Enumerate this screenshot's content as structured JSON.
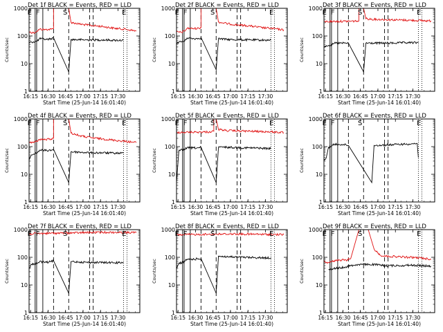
{
  "figure": {
    "ylabel": "Counts/sec",
    "xlabel": "Start Time (25-Jun-14 16:01:40)",
    "x_tick_labels": [
      "16:15",
      "16:30",
      "16:45",
      "17:00",
      "17:15",
      "17:30"
    ],
    "y_tick_labels": [
      "1",
      "10",
      "100",
      "1000"
    ],
    "marker_labels": [
      "E",
      "F",
      "S",
      "E"
    ]
  },
  "chart_data": [
    {
      "type": "line",
      "title": "Det 1f BLACK = Events, RED = LLD",
      "xlim_min": [
        12,
        107
      ],
      "ylim": [
        1,
        1000
      ],
      "y_scale": "log",
      "gaps_min": [
        [
          33,
          46
        ],
        [
          64,
          67
        ]
      ],
      "red_mode": "normal",
      "red": [
        [
          12,
          140
        ],
        [
          16,
          130
        ],
        [
          19,
          150
        ],
        [
          21,
          175
        ],
        [
          26,
          170
        ],
        [
          31,
          175
        ],
        [
          33,
          185
        ],
        [
          33,
          1000
        ],
        [
          46,
          1000
        ],
        [
          48,
          310
        ],
        [
          55,
          270
        ],
        [
          65,
          240
        ],
        [
          75,
          220
        ],
        [
          85,
          190
        ],
        [
          95,
          175
        ],
        [
          104,
          150
        ]
      ],
      "black": [
        [
          12,
          55
        ],
        [
          14,
          60
        ],
        [
          19,
          65
        ],
        [
          21,
          80
        ],
        [
          27,
          75
        ],
        [
          31,
          80
        ],
        [
          33,
          85
        ],
        [
          46,
          5
        ],
        [
          48,
          75
        ],
        [
          55,
          73
        ],
        [
          65,
          72
        ],
        [
          75,
          72
        ],
        [
          85,
          70
        ],
        [
          93,
          70
        ]
      ]
    },
    {
      "type": "line",
      "title": "Det 2f BLACK = Events, RED = LLD",
      "xlim_min": [
        12,
        107
      ],
      "ylim": [
        1,
        1000
      ],
      "y_scale": "log",
      "gaps_min": [
        [
          33,
          46
        ],
        [
          64,
          67
        ]
      ],
      "red_mode": "normal",
      "red": [
        [
          12,
          140
        ],
        [
          16,
          135
        ],
        [
          19,
          150
        ],
        [
          21,
          190
        ],
        [
          26,
          185
        ],
        [
          31,
          190
        ],
        [
          33,
          200
        ],
        [
          33,
          1000
        ],
        [
          46,
          1000
        ],
        [
          48,
          320
        ],
        [
          55,
          280
        ],
        [
          65,
          250
        ],
        [
          75,
          230
        ],
        [
          85,
          200
        ],
        [
          95,
          185
        ],
        [
          104,
          165
        ]
      ],
      "black": [
        [
          12,
          55
        ],
        [
          14,
          60
        ],
        [
          19,
          65
        ],
        [
          21,
          85
        ],
        [
          27,
          80
        ],
        [
          31,
          82
        ],
        [
          33,
          88
        ],
        [
          46,
          6
        ],
        [
          48,
          80
        ],
        [
          55,
          75
        ],
        [
          65,
          73
        ],
        [
          75,
          72
        ],
        [
          85,
          71
        ],
        [
          93,
          70
        ]
      ]
    },
    {
      "type": "line",
      "title": "Det 3f BLACK = Events, RED = LLD",
      "xlim_min": [
        12,
        107
      ],
      "ylim": [
        1,
        1000
      ],
      "y_scale": "log",
      "gaps_min": [
        [
          33,
          46
        ],
        [
          64,
          67
        ]
      ],
      "red_mode": "high",
      "red": [
        [
          12,
          330
        ],
        [
          20,
          335
        ],
        [
          30,
          340
        ],
        [
          40,
          345
        ],
        [
          42,
          350
        ],
        [
          42,
          1000
        ],
        [
          46,
          1000
        ],
        [
          48,
          420
        ],
        [
          55,
          400
        ],
        [
          65,
          390
        ],
        [
          75,
          380
        ],
        [
          85,
          370
        ],
        [
          95,
          360
        ],
        [
          104,
          350
        ]
      ],
      "black": [
        [
          12,
          40
        ],
        [
          14,
          45
        ],
        [
          19,
          48
        ],
        [
          21,
          55
        ],
        [
          27,
          55
        ],
        [
          31,
          55
        ],
        [
          33,
          55
        ],
        [
          46,
          5
        ],
        [
          48,
          55
        ],
        [
          55,
          55
        ],
        [
          65,
          55
        ],
        [
          75,
          56
        ],
        [
          85,
          57
        ],
        [
          93,
          57
        ]
      ]
    },
    {
      "type": "line",
      "title": "Det 4f BLACK = Events, RED = LLD",
      "xlim_min": [
        12,
        107
      ],
      "ylim": [
        1,
        1000
      ],
      "y_scale": "log",
      "gaps_min": [
        [
          33,
          46
        ],
        [
          64,
          67
        ]
      ],
      "red_mode": "normal",
      "red": [
        [
          12,
          150
        ],
        [
          16,
          140
        ],
        [
          19,
          160
        ],
        [
          21,
          185
        ],
        [
          26,
          180
        ],
        [
          31,
          190
        ],
        [
          33,
          200
        ],
        [
          33,
          1000
        ],
        [
          46,
          1000
        ],
        [
          48,
          310
        ],
        [
          55,
          250
        ],
        [
          65,
          210
        ],
        [
          75,
          190
        ],
        [
          85,
          170
        ],
        [
          95,
          155
        ],
        [
          104,
          140
        ]
      ],
      "black": [
        [
          12,
          35
        ],
        [
          14,
          50
        ],
        [
          19,
          60
        ],
        [
          21,
          75
        ],
        [
          27,
          72
        ],
        [
          31,
          75
        ],
        [
          33,
          80
        ],
        [
          46,
          5
        ],
        [
          48,
          65
        ],
        [
          55,
          63
        ],
        [
          65,
          60
        ],
        [
          75,
          60
        ],
        [
          85,
          58
        ],
        [
          93,
          58
        ]
      ]
    },
    {
      "type": "line",
      "title": "Det 5f BLACK = Events, RED = LLD",
      "xlim_min": [
        12,
        107
      ],
      "ylim": [
        1,
        1000
      ],
      "y_scale": "log",
      "gaps_min": [
        [
          33,
          46
        ],
        [
          64,
          67
        ]
      ],
      "red_mode": "high",
      "red": [
        [
          12,
          330
        ],
        [
          20,
          330
        ],
        [
          30,
          335
        ],
        [
          40,
          340
        ],
        [
          44,
          360
        ],
        [
          44,
          1000
        ],
        [
          46,
          1000
        ],
        [
          48,
          420
        ],
        [
          55,
          380
        ],
        [
          65,
          370
        ],
        [
          75,
          360
        ],
        [
          85,
          350
        ],
        [
          95,
          340
        ],
        [
          104,
          320
        ]
      ],
      "black": [
        [
          12,
          5
        ],
        [
          14,
          70
        ],
        [
          19,
          80
        ],
        [
          21,
          90
        ],
        [
          27,
          90
        ],
        [
          31,
          90
        ],
        [
          33,
          95
        ],
        [
          46,
          5
        ],
        [
          48,
          95
        ],
        [
          55,
          95
        ],
        [
          65,
          92
        ],
        [
          75,
          90
        ],
        [
          85,
          88
        ],
        [
          93,
          85
        ]
      ]
    },
    {
      "type": "line",
      "title": "Det 6f BLACK = Events, RED = LLD",
      "xlim_min": [
        12,
        107
      ],
      "ylim": [
        1,
        1000
      ],
      "y_scale": "log",
      "gaps_min": [
        [
          33,
          46
        ],
        [
          64,
          67
        ]
      ],
      "red_mode": "none",
      "red": [],
      "black": [
        [
          12,
          30
        ],
        [
          14,
          40
        ],
        [
          16,
          95
        ],
        [
          21,
          120
        ],
        [
          27,
          120
        ],
        [
          31,
          115
        ],
        [
          33,
          110
        ],
        [
          53,
          5
        ],
        [
          55,
          110
        ],
        [
          65,
          115
        ],
        [
          75,
          120
        ],
        [
          85,
          125
        ],
        [
          92,
          130
        ],
        [
          93,
          40
        ]
      ]
    },
    {
      "type": "line",
      "title": "Det 7f BLACK = Events, RED = LLD",
      "xlim_min": [
        12,
        107
      ],
      "ylim": [
        1,
        1000
      ],
      "y_scale": "log",
      "gaps_min": [
        [
          33,
          46
        ],
        [
          64,
          67
        ]
      ],
      "red_mode": "high",
      "red": [
        [
          12,
          700
        ],
        [
          20,
          720
        ],
        [
          30,
          740
        ],
        [
          40,
          750
        ],
        [
          50,
          760
        ],
        [
          60,
          780
        ],
        [
          70,
          790
        ],
        [
          80,
          800
        ],
        [
          90,
          790
        ],
        [
          104,
          780
        ]
      ],
      "black": [
        [
          12,
          40
        ],
        [
          14,
          55
        ],
        [
          19,
          60
        ],
        [
          21,
          70
        ],
        [
          27,
          65
        ],
        [
          31,
          70
        ],
        [
          33,
          75
        ],
        [
          46,
          5
        ],
        [
          48,
          70
        ],
        [
          55,
          68
        ],
        [
          65,
          65
        ],
        [
          75,
          65
        ],
        [
          85,
          64
        ],
        [
          93,
          63
        ]
      ]
    },
    {
      "type": "line",
      "title": "Det 8f BLACK = Events, RED = LLD",
      "xlim_min": [
        12,
        107
      ],
      "ylim": [
        1,
        1000
      ],
      "y_scale": "log",
      "gaps_min": [
        [
          33,
          46
        ],
        [
          64,
          67
        ]
      ],
      "red_mode": "high",
      "red": [
        [
          12,
          650
        ],
        [
          20,
          660
        ],
        [
          30,
          670
        ],
        [
          40,
          680
        ],
        [
          50,
          690
        ],
        [
          60,
          700
        ],
        [
          70,
          690
        ],
        [
          80,
          680
        ],
        [
          90,
          670
        ],
        [
          104,
          660
        ]
      ],
      "black": [
        [
          12,
          40
        ],
        [
          14,
          60
        ],
        [
          19,
          70
        ],
        [
          21,
          85
        ],
        [
          27,
          85
        ],
        [
          31,
          88
        ],
        [
          33,
          90
        ],
        [
          46,
          5
        ],
        [
          48,
          110
        ],
        [
          55,
          105
        ],
        [
          65,
          100
        ],
        [
          75,
          98
        ],
        [
          85,
          96
        ],
        [
          93,
          95
        ]
      ]
    },
    {
      "type": "line",
      "title": "Det 9f BLACK = Events, RED = LLD",
      "xlim_min": [
        12,
        107
      ],
      "ylim": [
        1,
        1000
      ],
      "y_scale": "log",
      "gaps_min": [
        [
          33,
          46
        ],
        [
          64,
          67
        ]
      ],
      "red_mode": "normal",
      "red": [
        [
          12,
          70
        ],
        [
          16,
          65
        ],
        [
          19,
          70
        ],
        [
          22,
          75
        ],
        [
          27,
          80
        ],
        [
          31,
          78
        ],
        [
          35,
          90
        ],
        [
          42,
          1000
        ],
        [
          50,
          1000
        ],
        [
          55,
          200
        ],
        [
          60,
          120
        ],
        [
          65,
          110
        ],
        [
          75,
          105
        ],
        [
          85,
          100
        ],
        [
          95,
          95
        ],
        [
          104,
          85
        ]
      ],
      "black": [
        [
          16,
          35
        ],
        [
          19,
          38
        ],
        [
          22,
          40
        ],
        [
          27,
          42
        ],
        [
          31,
          45
        ],
        [
          35,
          50
        ],
        [
          42,
          55
        ],
        [
          55,
          55
        ],
        [
          60,
          52
        ],
        [
          65,
          50
        ],
        [
          75,
          50
        ],
        [
          85,
          52
        ],
        [
          95,
          50
        ],
        [
          104,
          48
        ]
      ]
    }
  ]
}
